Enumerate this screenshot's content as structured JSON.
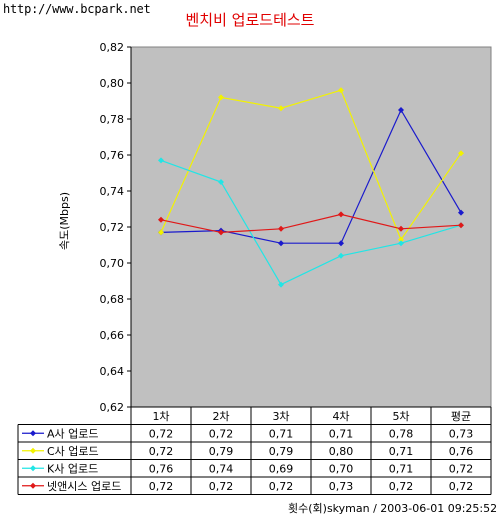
{
  "watermark": "http://www.bcpark.net",
  "chart_data": {
    "type": "line",
    "title": "벤치비 업로드테스트",
    "ylabel": "속도(Mbps)",
    "categories": [
      "1차",
      "2차",
      "3차",
      "4차",
      "5차",
      "평균"
    ],
    "ylim": [
      0.62,
      0.82
    ],
    "yticks": [
      "0,82",
      "0,80",
      "0,78",
      "0,76",
      "0,74",
      "0,72",
      "0,70",
      "0,68",
      "0,66",
      "0,64",
      "0,62"
    ],
    "grid": false,
    "series": [
      {
        "name": "A사 업로드",
        "color": "#1a1acc",
        "values": [
          0.717,
          0.718,
          0.711,
          0.711,
          0.785,
          0.728
        ],
        "table": [
          "0,72",
          "0,72",
          "0,71",
          "0,71",
          "0,78",
          "0,73"
        ]
      },
      {
        "name": "C사 업로드",
        "color": "#f2f200",
        "values": [
          0.717,
          0.792,
          0.786,
          0.796,
          0.713,
          0.761
        ],
        "table": [
          "0,72",
          "0,79",
          "0,79",
          "0,80",
          "0,71",
          "0,76"
        ]
      },
      {
        "name": "K사 업로드",
        "color": "#22e5e5",
        "values": [
          0.757,
          0.745,
          0.688,
          0.704,
          0.711,
          0.721
        ],
        "table": [
          "0,76",
          "0,74",
          "0,69",
          "0,70",
          "0,71",
          "0,72"
        ]
      },
      {
        "name": "넷앤시스 업로드",
        "color": "#e01818",
        "values": [
          0.724,
          0.717,
          0.719,
          0.727,
          0.719,
          0.721
        ],
        "table": [
          "0,72",
          "0,72",
          "0,72",
          "0,73",
          "0,72",
          "0,72"
        ]
      }
    ]
  },
  "footer": "횟수(회)skyman / 2003-06-01 09:25:52"
}
